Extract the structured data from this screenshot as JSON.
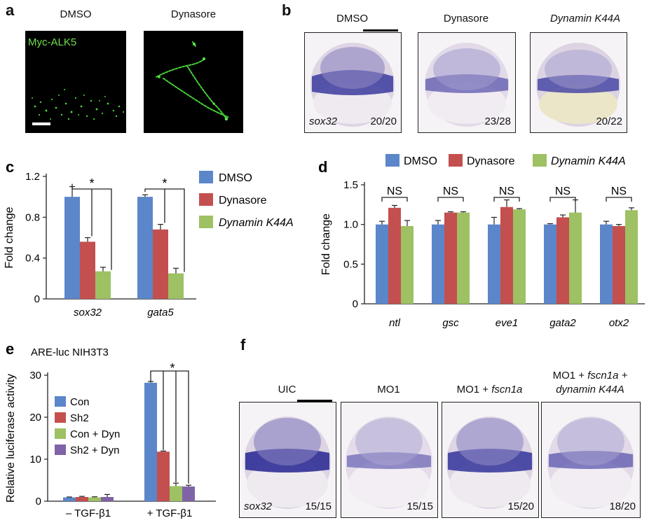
{
  "panel_a": {
    "letter": "a",
    "label_dmso": "DMSO",
    "label_dynasore": "Dynasore",
    "stain": "Myc-ALK5"
  },
  "panel_b": {
    "letter": "b",
    "label_dmso": "DMSO",
    "label_dynasore": "Dynasore",
    "label_k44a": "Dynamin K44A",
    "gene": "sox32",
    "count_dmso": "20/20",
    "count_dynasore": "23/28",
    "count_k44a": "20/22"
  },
  "panel_f": {
    "letter": "f",
    "label_uic": "UIC",
    "label_mo1": "MO1",
    "label_mo1_fscn": "MO1 +",
    "label_mo1_fscn_gene": "fscn1a",
    "label_mo1_fscn_dyn_line1": "MO1 +",
    "label_mo1_fscn_dyn_line1_gene": "fscn1a +",
    "label_mo1_fscn_dyn_line2": "dynamin K44A",
    "gene": "sox32",
    "count_uic": "15/15",
    "count_mo1": "15/15",
    "count_mo1_fscn": "15/20",
    "count_mo1_fscn_dyn": "18/20"
  },
  "colors": {
    "blue": "#5b86c9",
    "red": "#c44f4f",
    "green": "#9dc163",
    "purple": "#8063a7",
    "stain": "#2a2a8f"
  },
  "chart_data": [
    {
      "panel": "c",
      "type": "bar",
      "categories": [
        "sox32",
        "gata5"
      ],
      "series": [
        {
          "name": "DMSO",
          "values": [
            1.0,
            1.0
          ],
          "errors": [
            0.1,
            0.02
          ]
        },
        {
          "name": "Dynasore",
          "values": [
            0.56,
            0.68
          ],
          "errors": [
            0.04,
            0.05
          ]
        },
        {
          "name": "Dynamin K44A",
          "values": [
            0.27,
            0.25
          ],
          "errors": [
            0.04,
            0.05
          ]
        }
      ],
      "ylabel": "Fold change",
      "ylim": [
        0,
        1.2
      ],
      "yticks": [
        "0",
        "0.4",
        "0.8",
        "1.2"
      ],
      "annotations": [
        "*",
        "*"
      ],
      "legend": "right"
    },
    {
      "panel": "d",
      "type": "bar",
      "categories": [
        "ntl",
        "gsc",
        "eve1",
        "gata2",
        "otx2"
      ],
      "series": [
        {
          "name": "DMSO",
          "values": [
            1.0,
            1.0,
            1.0,
            1.0,
            1.0
          ],
          "errors": [
            0.04,
            0.05,
            0.09,
            0.01,
            0.04
          ]
        },
        {
          "name": "Dynasore",
          "values": [
            1.21,
            1.15,
            1.22,
            1.09,
            0.98
          ],
          "errors": [
            0.03,
            0.01,
            0.09,
            0.03,
            0.02
          ]
        },
        {
          "name": "Dynamin K44A",
          "values": [
            0.98,
            1.15,
            1.19,
            1.15,
            1.18
          ],
          "errors": [
            0.07,
            0.01,
            0.01,
            0.16,
            0.03
          ]
        }
      ],
      "ylabel": "Fold change",
      "ylim": [
        0,
        1.5
      ],
      "yticks": [
        "0",
        "0.5",
        "1.0",
        "1.5"
      ],
      "annotations": [
        "NS",
        "NS",
        "NS",
        "NS",
        "NS"
      ],
      "legend": "top"
    },
    {
      "panel": "e",
      "type": "bar",
      "title": "ARE-luc  NIH3T3",
      "categories": [
        "– TGF-β1",
        "+ TGF-β1"
      ],
      "series": [
        {
          "name": "Con",
          "values": [
            0.9,
            28.2
          ],
          "errors": [
            0.1,
            0.3
          ]
        },
        {
          "name": "Sh2",
          "values": [
            1.0,
            11.8
          ],
          "errors": [
            0.15,
            0.15
          ]
        },
        {
          "name": "Con + Dyn",
          "values": [
            0.9,
            3.6
          ],
          "errors": [
            0.15,
            0.7
          ]
        },
        {
          "name": "Sh2 + Dyn",
          "values": [
            1.0,
            3.5
          ],
          "errors": [
            0.6,
            0.3
          ]
        }
      ],
      "ylabel": "Relative luciferase activity",
      "ylim": [
        0,
        30
      ],
      "yticks": [
        "0",
        "10",
        "20",
        "30"
      ],
      "annotations": [
        "*"
      ],
      "legend": "left"
    }
  ]
}
